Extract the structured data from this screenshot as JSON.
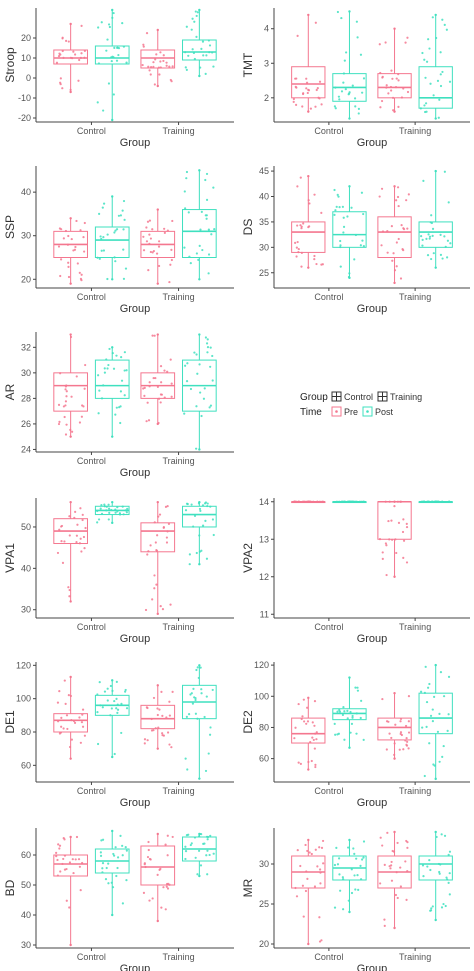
{
  "colors": {
    "pre": "#f4778f",
    "post": "#3fe0bf",
    "axis": "#444444"
  },
  "legend": {
    "group_title": "Group",
    "group_items": [
      "Control",
      "Training"
    ],
    "time_title": "Time",
    "time_items": [
      "Pre",
      "Post"
    ]
  },
  "chart_data": [
    {
      "type": "boxplot",
      "ylabel": "Stroop",
      "xlabel": "Group",
      "categories": [
        "Control",
        "Training"
      ],
      "ylim": [
        -22,
        35
      ],
      "yticks": [
        -20,
        -10,
        0,
        10,
        20
      ],
      "series": [
        {
          "name": "Pre",
          "boxes": [
            {
              "min": -7,
              "q1": 7,
              "median": 10,
              "q3": 14,
              "max": 27
            },
            {
              "min": -4,
              "q1": 5,
              "median": 10,
              "q3": 14,
              "max": 24
            }
          ]
        },
        {
          "name": "Post",
          "boxes": [
            {
              "min": -21,
              "q1": 7,
              "median": 10,
              "q3": 16,
              "max": 34
            },
            {
              "min": 1,
              "q1": 9,
              "median": 13,
              "q3": 19,
              "max": 34
            }
          ]
        }
      ]
    },
    {
      "type": "boxplot",
      "ylabel": "TMT",
      "xlabel": "Group",
      "categories": [
        "Control",
        "Training"
      ],
      "ylim": [
        1.3,
        4.6
      ],
      "yticks": [
        2,
        3,
        4
      ],
      "series": [
        {
          "name": "Pre",
          "boxes": [
            {
              "min": 1.6,
              "q1": 2.0,
              "median": 2.4,
              "q3": 2.9,
              "max": 4.4
            },
            {
              "min": 1.6,
              "q1": 2.0,
              "median": 2.3,
              "q3": 2.7,
              "max": 4.0
            }
          ]
        },
        {
          "name": "Post",
          "boxes": [
            {
              "min": 1.4,
              "q1": 1.9,
              "median": 2.3,
              "q3": 2.7,
              "max": 4.5
            },
            {
              "min": 1.4,
              "q1": 1.7,
              "median": 2.0,
              "q3": 2.9,
              "max": 4.4
            }
          ]
        }
      ]
    },
    {
      "type": "boxplot",
      "ylabel": "SSP",
      "xlabel": "Group",
      "categories": [
        "Control",
        "Training"
      ],
      "ylim": [
        18,
        46
      ],
      "yticks": [
        20,
        30,
        40
      ],
      "series": [
        {
          "name": "Pre",
          "boxes": [
            {
              "min": 19,
              "q1": 25,
              "median": 28,
              "q3": 31,
              "max": 34
            },
            {
              "min": 19,
              "q1": 25,
              "median": 28,
              "q3": 31,
              "max": 36
            }
          ]
        },
        {
          "name": "Post",
          "boxes": [
            {
              "min": 20,
              "q1": 25,
              "median": 29,
              "q3": 32,
              "max": 39
            },
            {
              "min": 20,
              "q1": 25,
              "median": 31,
              "q3": 36,
              "max": 45
            }
          ]
        }
      ]
    },
    {
      "type": "boxplot",
      "ylabel": "DS",
      "xlabel": "Group",
      "categories": [
        "Control",
        "Training"
      ],
      "ylim": [
        22,
        46
      ],
      "yticks": [
        25,
        30,
        35,
        40,
        45
      ],
      "series": [
        {
          "name": "Pre",
          "boxes": [
            {
              "min": 26,
              "q1": 29,
              "median": 33,
              "q3": 35,
              "max": 44
            },
            {
              "min": 23,
              "q1": 28,
              "median": 33,
              "q3": 36,
              "max": 42
            }
          ]
        },
        {
          "name": "Post",
          "boxes": [
            {
              "min": 24,
              "q1": 30,
              "median": 32.5,
              "q3": 37,
              "max": 42
            },
            {
              "min": 26,
              "q1": 30,
              "median": 33,
              "q3": 35,
              "max": 45
            }
          ]
        }
      ]
    },
    {
      "type": "boxplot",
      "ylabel": "AR",
      "xlabel": "Group",
      "categories": [
        "Control",
        "Training"
      ],
      "ylim": [
        23.8,
        33.2
      ],
      "yticks": [
        24,
        26,
        28,
        30,
        32
      ],
      "series": [
        {
          "name": "Pre",
          "boxes": [
            {
              "min": 25,
              "q1": 27,
              "median": 29,
              "q3": 30,
              "max": 33
            },
            {
              "min": 26,
              "q1": 28,
              "median": 29,
              "q3": 30,
              "max": 33
            }
          ]
        },
        {
          "name": "Post",
          "boxes": [
            {
              "min": 25,
              "q1": 28,
              "median": 29,
              "q3": 31,
              "max": 32
            },
            {
              "min": 24,
              "q1": 27,
              "median": 29,
              "q3": 31,
              "max": 33
            }
          ]
        }
      ]
    },
    {
      "type": "boxplot",
      "ylabel": "VPA1",
      "xlabel": "Group",
      "categories": [
        "Control",
        "Training"
      ],
      "ylim": [
        28,
        57
      ],
      "yticks": [
        30,
        40,
        50
      ],
      "series": [
        {
          "name": "Pre",
          "boxes": [
            {
              "min": 32,
              "q1": 46,
              "median": 49,
              "q3": 52,
              "max": 56
            },
            {
              "min": 29,
              "q1": 44,
              "median": 49,
              "q3": 51,
              "max": 56
            }
          ]
        },
        {
          "name": "Post",
          "boxes": [
            {
              "min": 51,
              "q1": 53,
              "median": 54,
              "q3": 55,
              "max": 56
            },
            {
              "min": 41,
              "q1": 50,
              "median": 53,
              "q3": 55,
              "max": 56
            }
          ]
        }
      ]
    },
    {
      "type": "boxplot",
      "ylabel": "VPA2",
      "xlabel": "Group",
      "categories": [
        "Control",
        "Training"
      ],
      "ylim": [
        10.9,
        14.1
      ],
      "yticks": [
        11,
        12,
        13,
        14
      ],
      "series": [
        {
          "name": "Pre",
          "boxes": [
            {
              "min": 14,
              "q1": 14,
              "median": 14,
              "q3": 14,
              "max": 14
            },
            {
              "min": 12,
              "q1": 13,
              "median": 14,
              "q3": 14,
              "max": 14
            }
          ]
        },
        {
          "name": "Post",
          "boxes": [
            {
              "min": 14,
              "q1": 14,
              "median": 14,
              "q3": 14,
              "max": 14
            },
            {
              "min": 14,
              "q1": 14,
              "median": 14,
              "q3": 14,
              "max": 14
            }
          ]
        }
      ]
    },
    {
      "type": "boxplot",
      "ylabel": "DE1",
      "xlabel": "Group",
      "categories": [
        "Control",
        "Training"
      ],
      "ylim": [
        50,
        122
      ],
      "yticks": [
        60,
        80,
        100,
        120
      ],
      "series": [
        {
          "name": "Pre",
          "boxes": [
            {
              "min": 64,
              "q1": 80,
              "median": 87,
              "q3": 91,
              "max": 113
            },
            {
              "min": 70,
              "q1": 82,
              "median": 88,
              "q3": 96,
              "max": 108
            }
          ]
        },
        {
          "name": "Post",
          "boxes": [
            {
              "min": 65,
              "q1": 90,
              "median": 96,
              "q3": 102,
              "max": 111
            },
            {
              "min": 52,
              "q1": 88,
              "median": 98,
              "q3": 108,
              "max": 120
            }
          ]
        }
      ]
    },
    {
      "type": "boxplot",
      "ylabel": "DE2",
      "xlabel": "Group",
      "categories": [
        "Control",
        "Training"
      ],
      "ylim": [
        45,
        122
      ],
      "yticks": [
        60,
        80,
        100,
        120
      ],
      "series": [
        {
          "name": "Pre",
          "boxes": [
            {
              "min": 53,
              "q1": 70,
              "median": 76,
              "q3": 86,
              "max": 99
            },
            {
              "min": 60,
              "q1": 72,
              "median": 80,
              "q3": 86,
              "max": 102
            }
          ]
        },
        {
          "name": "Post",
          "boxes": [
            {
              "min": 67,
              "q1": 85,
              "median": 89,
              "q3": 92,
              "max": 112
            },
            {
              "min": 47,
              "q1": 76,
              "median": 86,
              "q3": 102,
              "max": 120
            }
          ]
        }
      ]
    },
    {
      "type": "boxplot",
      "ylabel": "BD",
      "xlabel": "Group",
      "categories": [
        "Control",
        "Training"
      ],
      "ylim": [
        29,
        69
      ],
      "yticks": [
        30,
        40,
        50,
        60
      ],
      "series": [
        {
          "name": "Pre",
          "boxes": [
            {
              "min": 30,
              "q1": 53,
              "median": 57,
              "q3": 60,
              "max": 66
            },
            {
              "min": 38,
              "q1": 50,
              "median": 56,
              "q3": 63,
              "max": 67
            }
          ]
        },
        {
          "name": "Post",
          "boxes": [
            {
              "min": 40,
              "q1": 54,
              "median": 58,
              "q3": 62,
              "max": 68
            },
            {
              "min": 53,
              "q1": 58,
              "median": 62,
              "q3": 66,
              "max": 67
            }
          ]
        }
      ]
    },
    {
      "type": "boxplot",
      "ylabel": "MR",
      "xlabel": "Group",
      "categories": [
        "Control",
        "Training"
      ],
      "ylim": [
        19.5,
        34.5
      ],
      "yticks": [
        20,
        25,
        30
      ],
      "series": [
        {
          "name": "Pre",
          "boxes": [
            {
              "min": 20,
              "q1": 27,
              "median": 29,
              "q3": 31,
              "max": 33
            },
            {
              "min": 22,
              "q1": 27,
              "median": 29,
              "q3": 31,
              "max": 34
            }
          ]
        },
        {
          "name": "Post",
          "boxes": [
            {
              "min": 24,
              "q1": 28,
              "median": 29.5,
              "q3": 31,
              "max": 33
            },
            {
              "min": 23,
              "q1": 28,
              "median": 30,
              "q3": 31,
              "max": 34
            }
          ]
        }
      ]
    }
  ]
}
